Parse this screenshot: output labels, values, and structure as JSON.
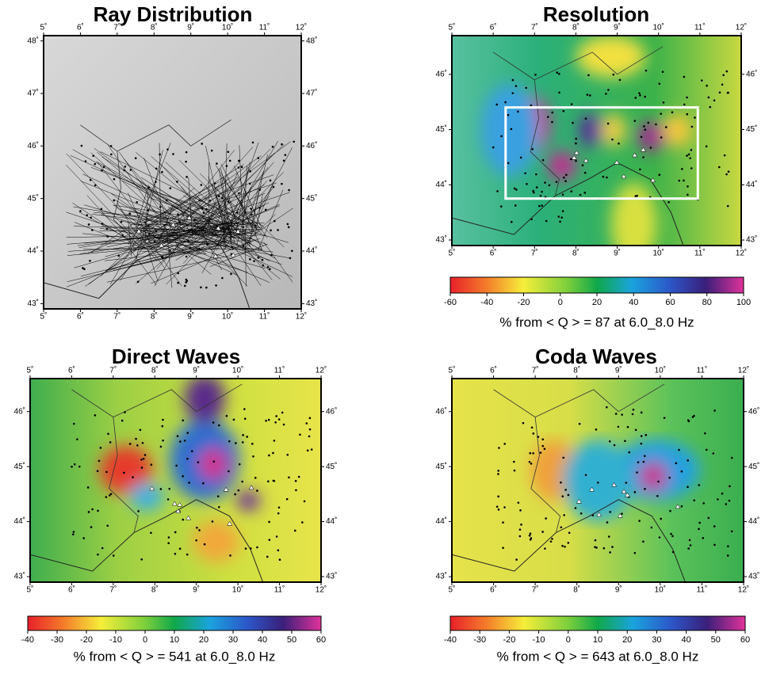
{
  "panels": [
    {
      "title": "Ray Distribution",
      "lon_range": [
        5,
        12
      ],
      "lat_range": [
        42.9,
        48.1
      ],
      "lon_ticks": [
        {
          "value": 5,
          "label": "5˚"
        },
        {
          "value": 6,
          "label": "6˚"
        },
        {
          "value": 7,
          "label": "7˚"
        },
        {
          "value": 8,
          "label": "8˚"
        },
        {
          "value": 9,
          "label": "9˚"
        },
        {
          "value": 10,
          "label": "10˚"
        },
        {
          "value": 11,
          "label": "11˚"
        },
        {
          "value": 12,
          "label": "12˚"
        }
      ],
      "lat_ticks": [
        {
          "value": 43,
          "label": "43˚"
        },
        {
          "value": 44,
          "label": "44˚"
        },
        {
          "value": 45,
          "label": "45˚"
        },
        {
          "value": 46,
          "label": "46˚"
        },
        {
          "value": 47,
          "label": "47˚"
        },
        {
          "value": 48,
          "label": "48˚"
        }
      ]
    },
    {
      "title": "Resolution",
      "lon_range": [
        5,
        12
      ],
      "lat_range": [
        42.9,
        46.7
      ],
      "lon_ticks": [
        {
          "value": 5,
          "label": "5˚"
        },
        {
          "value": 6,
          "label": "6˚"
        },
        {
          "value": 7,
          "label": "7˚"
        },
        {
          "value": 8,
          "label": "8˚"
        },
        {
          "value": 9,
          "label": "9˚"
        },
        {
          "value": 10,
          "label": "10˚"
        },
        {
          "value": 11,
          "label": "11˚"
        },
        {
          "value": 12,
          "label": "12˚"
        }
      ],
      "lat_ticks": [
        {
          "value": 43,
          "label": "43˚"
        },
        {
          "value": 44,
          "label": "44˚"
        },
        {
          "value": 45,
          "label": "45˚"
        },
        {
          "value": 46,
          "label": "46˚"
        }
      ],
      "colorbar": {
        "range": [
          -60,
          100
        ],
        "ticks": [
          -60,
          -40,
          -20,
          0,
          20,
          40,
          60,
          80,
          100
        ],
        "caption": "% from < Q > = 87 at 6.0_8.0 Hz"
      }
    },
    {
      "title": "Direct Waves",
      "lon_range": [
        5,
        12
      ],
      "lat_range": [
        42.9,
        46.6
      ],
      "lon_ticks": [
        {
          "value": 5,
          "label": "5˚"
        },
        {
          "value": 6,
          "label": "6˚"
        },
        {
          "value": 7,
          "label": "7˚"
        },
        {
          "value": 8,
          "label": "8˚"
        },
        {
          "value": 9,
          "label": "9˚"
        },
        {
          "value": 10,
          "label": "10˚"
        },
        {
          "value": 11,
          "label": "11˚"
        },
        {
          "value": 12,
          "label": "12˚"
        }
      ],
      "lat_ticks": [
        {
          "value": 43,
          "label": "43˚"
        },
        {
          "value": 44,
          "label": "44˚"
        },
        {
          "value": 45,
          "label": "45˚"
        },
        {
          "value": 46,
          "label": "46˚"
        }
      ],
      "colorbar": {
        "range": [
          -40,
          60
        ],
        "ticks": [
          -40,
          -30,
          -20,
          -10,
          0,
          10,
          20,
          30,
          40,
          50,
          60
        ],
        "caption": "% from < Q > = 541 at 6.0_8.0 Hz"
      }
    },
    {
      "title": "Coda Waves",
      "lon_range": [
        5,
        12
      ],
      "lat_range": [
        42.9,
        46.6
      ],
      "lon_ticks": [
        {
          "value": 5,
          "label": "5˚"
        },
        {
          "value": 6,
          "label": "6˚"
        },
        {
          "value": 7,
          "label": "7˚"
        },
        {
          "value": 8,
          "label": "8˚"
        },
        {
          "value": 9,
          "label": "9˚"
        },
        {
          "value": 10,
          "label": "10˚"
        },
        {
          "value": 11,
          "label": "11˚"
        },
        {
          "value": 12,
          "label": "12˚"
        }
      ],
      "lat_ticks": [
        {
          "value": 43,
          "label": "43˚"
        },
        {
          "value": 44,
          "label": "44˚"
        },
        {
          "value": 45,
          "label": "45˚"
        },
        {
          "value": 46,
          "label": "46˚"
        }
      ],
      "colorbar": {
        "range": [
          -40,
          60
        ],
        "ticks": [
          -40,
          -30,
          -20,
          -10,
          0,
          10,
          20,
          30,
          40,
          50,
          60
        ],
        "caption": "% from < Q > = 643 at 6.0_8.0 Hz"
      }
    }
  ]
}
